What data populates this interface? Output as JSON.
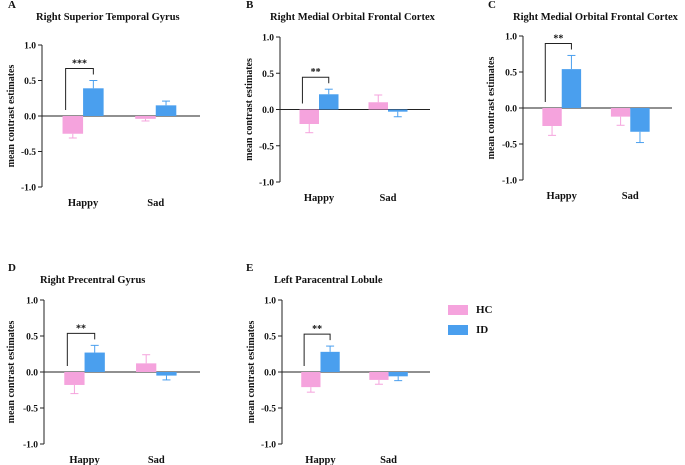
{
  "colors": {
    "hc": "#F5A3DD",
    "id": "#4A9FEE",
    "axis": "#222222"
  },
  "legend": [
    {
      "key": "hc",
      "label": "HC"
    },
    {
      "key": "id",
      "label": "ID"
    }
  ],
  "chart_data": [
    {
      "type": "bar",
      "panel": "A",
      "title": "Right Superior Temporal Gyrus",
      "ylabel": "mean contrast estimates",
      "ylim": [
        -1.0,
        1.0
      ],
      "yticks": [
        "-1.0",
        "-0.5",
        "0.0",
        "0.5",
        "1.0"
      ],
      "ytick_values": [
        -1.0,
        -0.5,
        0.0,
        0.5,
        1.0
      ],
      "categories": [
        "Happy",
        "Sad"
      ],
      "series": [
        {
          "name": "HC",
          "values": [
            -0.25,
            -0.04
          ],
          "errors": [
            0.06,
            0.03
          ]
        },
        {
          "name": "ID",
          "values": [
            0.39,
            0.15
          ],
          "errors": [
            0.11,
            0.06
          ]
        }
      ],
      "significance": [
        {
          "category": "Happy",
          "label": "***"
        }
      ]
    },
    {
      "type": "bar",
      "panel": "B",
      "title": "Right Medial Orbital Frontal Cortex",
      "ylabel": "mean contrast estimates",
      "ylim": [
        -1.0,
        1.0
      ],
      "yticks": [
        "-1.0",
        "-0.5",
        "0.0",
        "0.5",
        "1.0"
      ],
      "ytick_values": [
        -1.0,
        -0.5,
        0.0,
        0.5,
        1.0
      ],
      "categories": [
        "Happy",
        "Sad"
      ],
      "series": [
        {
          "name": "HC",
          "values": [
            -0.2,
            0.1
          ],
          "errors": [
            0.12,
            0.1
          ]
        },
        {
          "name": "ID",
          "values": [
            0.21,
            -0.03
          ],
          "errors": [
            0.07,
            0.07
          ]
        }
      ],
      "significance": [
        {
          "category": "Happy",
          "label": "**"
        }
      ]
    },
    {
      "type": "bar",
      "panel": "C",
      "title": "Right Medial Orbital Frontal Cortex",
      "ylabel": "mean contrast estimates",
      "ylim": [
        -1.0,
        1.0
      ],
      "yticks": [
        "-1.0",
        "-0.5",
        "0.0",
        "0.5",
        "1.0"
      ],
      "ytick_values": [
        -1.0,
        -0.5,
        0.0,
        0.5,
        1.0
      ],
      "categories": [
        "Happy",
        "Sad"
      ],
      "series": [
        {
          "name": "HC",
          "values": [
            -0.25,
            -0.12
          ],
          "errors": [
            0.13,
            0.12
          ]
        },
        {
          "name": "ID",
          "values": [
            0.54,
            -0.33
          ],
          "errors": [
            0.19,
            0.15
          ]
        }
      ],
      "significance": [
        {
          "category": "Happy",
          "label": "**"
        }
      ]
    },
    {
      "type": "bar",
      "panel": "D",
      "title": "Right Precentral Gyrus",
      "ylabel": "mean contrast estimates",
      "ylim": [
        -1.0,
        1.0
      ],
      "yticks": [
        "-1.0",
        "-0.5",
        "0.0",
        "0.5",
        "1.0"
      ],
      "ytick_values": [
        -1.0,
        -0.5,
        0.0,
        0.5,
        1.0
      ],
      "categories": [
        "Happy",
        "Sad"
      ],
      "series": [
        {
          "name": "HC",
          "values": [
            -0.18,
            0.12
          ],
          "errors": [
            0.12,
            0.12
          ]
        },
        {
          "name": "ID",
          "values": [
            0.27,
            -0.05
          ],
          "errors": [
            0.1,
            0.06
          ]
        }
      ],
      "significance": [
        {
          "category": "Happy",
          "label": "**"
        }
      ]
    },
    {
      "type": "bar",
      "panel": "E",
      "title": "Left Paracentral Lobule",
      "ylabel": "mean contrast estimates",
      "ylim": [
        -1.0,
        1.0
      ],
      "yticks": [
        "-1.0",
        "-0.5",
        "0.0",
        "0.5",
        "1.0"
      ],
      "ytick_values": [
        -1.0,
        -0.5,
        0.0,
        0.5,
        1.0
      ],
      "categories": [
        "Happy",
        "Sad"
      ],
      "series": [
        {
          "name": "HC",
          "values": [
            -0.21,
            -0.11
          ],
          "errors": [
            0.07,
            0.06
          ]
        },
        {
          "name": "ID",
          "values": [
            0.28,
            -0.06
          ],
          "errors": [
            0.08,
            0.06
          ]
        }
      ],
      "significance": [
        {
          "category": "Happy",
          "label": "**"
        }
      ]
    }
  ]
}
